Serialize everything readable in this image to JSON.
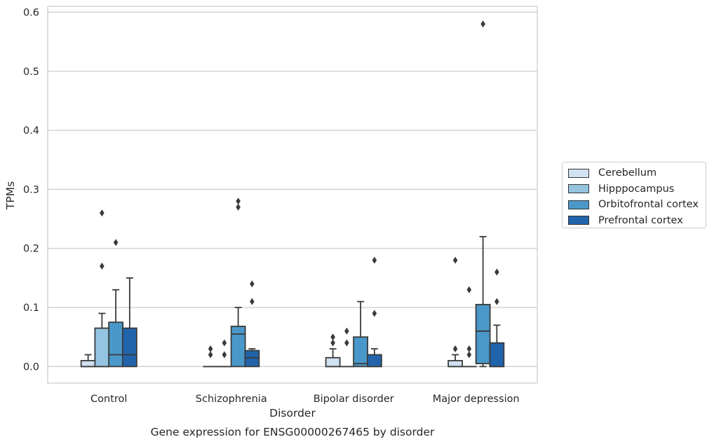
{
  "chart_data": {
    "type": "box",
    "title": "Gene expression for ENSG00000267465 by disorder",
    "xlabel": "Disorder",
    "ylabel": "TPMs",
    "ylim": [
      -0.028,
      0.61
    ],
    "yticks": [
      "0.0",
      "0.1",
      "0.2",
      "0.3",
      "0.4",
      "0.5",
      "0.6"
    ],
    "grid": "horizontal",
    "legend_position": "right",
    "categories": [
      "Control",
      "Schizophrenia",
      "Bipolar disorder",
      "Major depression"
    ],
    "series": [
      {
        "name": "Cerebellum",
        "color": "#d0e1f2",
        "boxes": [
          {
            "q1": 0.0,
            "median": 0.0,
            "q3": 0.01,
            "whislo": 0.0,
            "whishi": 0.02,
            "fliers": []
          },
          {
            "q1": 0.0,
            "median": 0.0,
            "q3": 0.0,
            "whislo": 0.0,
            "whishi": 0.0,
            "fliers": [
              0.02,
              0.03
            ]
          },
          {
            "q1": 0.0,
            "median": 0.0,
            "q3": 0.015,
            "whislo": 0.0,
            "whishi": 0.03,
            "fliers": [
              0.04,
              0.05
            ]
          },
          {
            "q1": 0.0,
            "median": 0.0,
            "q3": 0.01,
            "whislo": 0.0,
            "whishi": 0.02,
            "fliers": [
              0.03,
              0.18
            ]
          }
        ]
      },
      {
        "name": "Hipppocampus",
        "color": "#94c4df",
        "boxes": [
          {
            "q1": 0.0,
            "median": 0.0,
            "q3": 0.065,
            "whislo": 0.0,
            "whishi": 0.09,
            "fliers": [
              0.17,
              0.26
            ]
          },
          {
            "q1": 0.0,
            "median": 0.0,
            "q3": 0.0,
            "whislo": 0.0,
            "whishi": 0.0,
            "fliers": [
              0.02,
              0.04
            ]
          },
          {
            "q1": 0.0,
            "median": 0.0,
            "q3": 0.0,
            "whislo": 0.0,
            "whishi": 0.0,
            "fliers": [
              0.04,
              0.06
            ]
          },
          {
            "q1": 0.0,
            "median": 0.0,
            "q3": 0.0,
            "whislo": 0.0,
            "whishi": 0.0,
            "fliers": [
              0.02,
              0.03,
              0.13
            ]
          }
        ]
      },
      {
        "name": "Orbitofrontal cortex",
        "color": "#4a98c9",
        "boxes": [
          {
            "q1": 0.0,
            "median": 0.02,
            "q3": 0.075,
            "whislo": 0.0,
            "whishi": 0.13,
            "fliers": [
              0.21
            ]
          },
          {
            "q1": 0.0,
            "median": 0.055,
            "q3": 0.068,
            "whislo": 0.0,
            "whishi": 0.1,
            "fliers": [
              0.27,
              0.28
            ]
          },
          {
            "q1": 0.0,
            "median": 0.005,
            "q3": 0.05,
            "whislo": 0.0,
            "whishi": 0.11,
            "fliers": []
          },
          {
            "q1": 0.005,
            "median": 0.06,
            "q3": 0.105,
            "whislo": 0.0,
            "whishi": 0.22,
            "fliers": [
              0.58
            ]
          }
        ]
      },
      {
        "name": "Prefrontal cortex",
        "color": "#2164ab",
        "boxes": [
          {
            "q1": 0.0,
            "median": 0.02,
            "q3": 0.065,
            "whislo": 0.0,
            "whishi": 0.15,
            "fliers": []
          },
          {
            "q1": 0.0,
            "median": 0.015,
            "q3": 0.027,
            "whislo": 0.0,
            "whishi": 0.03,
            "fliers": [
              0.11,
              0.14
            ]
          },
          {
            "q1": 0.0,
            "median": 0.0,
            "q3": 0.02,
            "whislo": 0.0,
            "whishi": 0.03,
            "fliers": [
              0.09,
              0.18
            ]
          },
          {
            "q1": 0.0,
            "median": 0.0,
            "q3": 0.04,
            "whislo": 0.0,
            "whishi": 0.07,
            "fliers": [
              0.11,
              0.16
            ]
          }
        ]
      }
    ]
  }
}
